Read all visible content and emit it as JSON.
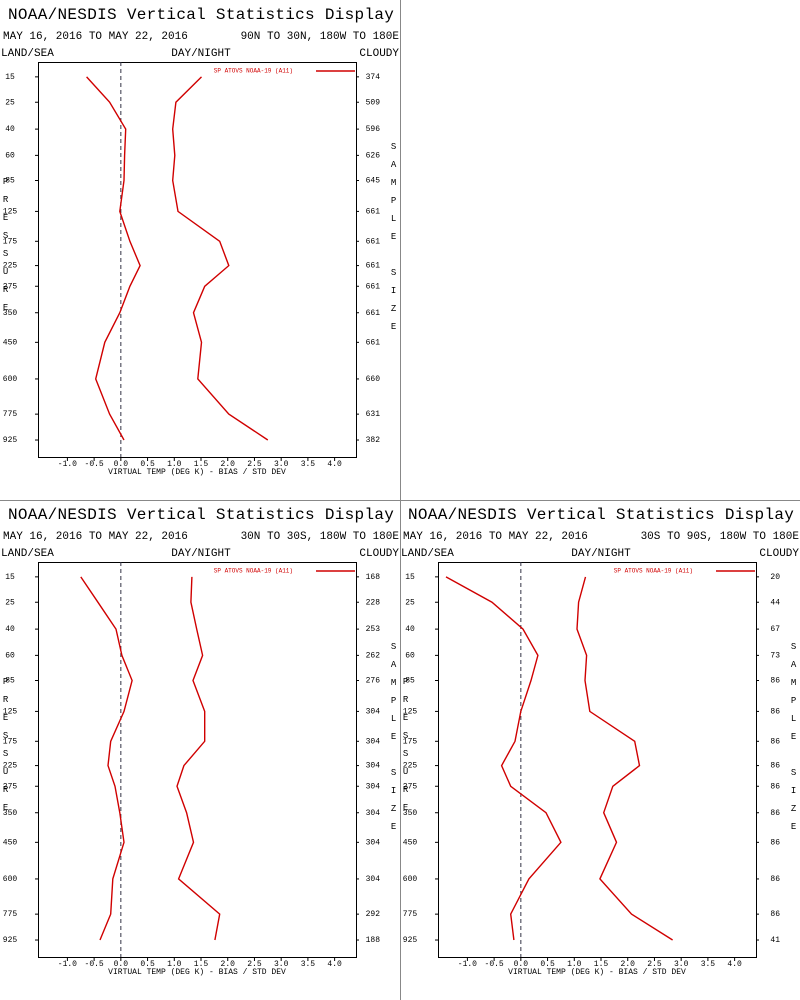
{
  "chart_data": [
    {
      "type": "line",
      "title": "NOAA/NESDIS Vertical Statistics Display",
      "date_range": "MAY 16, 2016 TO MAY 22, 2016",
      "region": "90N TO 30N, 180W TO 180E",
      "land_sea": "LAND/SEA",
      "day_night": "DAY/NIGHT",
      "cloudy": "CLOUDY",
      "x_label": "VIRTUAL TEMP (DEG K) - BIAS / STD DEV",
      "y_label": "PRESSURE",
      "y2_label": "SAMPLE SIZE",
      "categories": [
        15,
        25,
        40,
        60,
        85,
        125,
        175,
        225,
        275,
        350,
        450,
        600,
        775,
        925
      ],
      "sample_sizes": [
        374,
        509,
        596,
        626,
        645,
        661,
        661,
        661,
        661,
        661,
        661,
        660,
        631,
        382
      ],
      "series": [
        {
          "name": "SP ATOVS NOAA-19 (A11)",
          "color": "#d00000",
          "values": [
            -0.64,
            -0.21,
            0.09,
            0.07,
            0.06,
            -0.02,
            0.17,
            0.36,
            0.17,
            -0.02,
            -0.3,
            -0.47,
            -0.21,
            0.06
          ]
        },
        {
          "color": "#d00000",
          "values": [
            1.51,
            1.03,
            0.97,
            1.01,
            0.97,
            1.07,
            1.85,
            2.02,
            1.57,
            1.36,
            1.51,
            1.44,
            2.02,
            2.75
          ]
        }
      ],
      "xlim": [
        -1.55,
        4.4
      ],
      "xticks": [
        {
          "value": -1,
          "label": "-1.0"
        },
        {
          "value": -0.5,
          "label": "-0.5"
        },
        {
          "value": 0,
          "label": "0.0"
        },
        {
          "value": 0.5,
          "label": "0.5"
        },
        {
          "value": 1,
          "label": "1.0"
        },
        {
          "value": 1.5,
          "label": "1.5"
        },
        {
          "value": 2,
          "label": "2.0"
        },
        {
          "value": 2.5,
          "label": "2.5"
        },
        {
          "value": 3,
          "label": "3.0"
        },
        {
          "value": 3.5,
          "label": "3.5"
        },
        {
          "value": 4,
          "label": "4.0"
        }
      ],
      "ylim": [
        1034,
        10.7
      ],
      "yscale": "power",
      "yscale_exponent": 0.286,
      "zero_line": true
    },
    {
      "type": "line",
      "title": "NOAA/NESDIS Vertical Statistics Display",
      "date_range": "MAY 16, 2016 TO MAY 22, 2016",
      "region": "30N TO 30S, 180W TO 180E",
      "land_sea": "LAND/SEA",
      "day_night": "DAY/NIGHT",
      "cloudy": "CLOUDY",
      "x_label": "VIRTUAL TEMP (DEG K) - BIAS / STD DEV",
      "y_label": "PRESSURE",
      "y2_label": "SAMPLE SIZE",
      "categories": [
        15,
        25,
        40,
        60,
        85,
        125,
        175,
        225,
        275,
        350,
        450,
        600,
        775,
        925
      ],
      "sample_sizes": [
        168,
        228,
        253,
        262,
        276,
        304,
        304,
        304,
        304,
        304,
        304,
        304,
        292,
        188
      ],
      "series": [
        {
          "name": "SP ATOVS NOAA-19 (A11)",
          "color": "#d00000",
          "values": [
            -0.75,
            -0.43,
            -0.09,
            0.02,
            0.21,
            0.06,
            -0.19,
            -0.24,
            -0.11,
            -0.02,
            0.06,
            -0.15,
            -0.19,
            -0.39
          ]
        },
        {
          "color": "#d00000",
          "values": [
            1.33,
            1.31,
            1.42,
            1.53,
            1.35,
            1.57,
            1.57,
            1.18,
            1.05,
            1.23,
            1.36,
            1.08,
            1.85,
            1.76
          ]
        }
      ],
      "xlim": [
        -1.55,
        4.4
      ],
      "xticks": [
        {
          "value": -1,
          "label": "-1.0"
        },
        {
          "value": -0.5,
          "label": "-0.5"
        },
        {
          "value": 0,
          "label": "0.0"
        },
        {
          "value": 0.5,
          "label": "0.5"
        },
        {
          "value": 1,
          "label": "1.0"
        },
        {
          "value": 1.5,
          "label": "1.5"
        },
        {
          "value": 2,
          "label": "2.0"
        },
        {
          "value": 2.5,
          "label": "2.5"
        },
        {
          "value": 3,
          "label": "3.0"
        },
        {
          "value": 3.5,
          "label": "3.5"
        },
        {
          "value": 4,
          "label": "4.0"
        }
      ],
      "ylim": [
        1034,
        10.7
      ],
      "yscale": "power",
      "yscale_exponent": 0.286,
      "zero_line": true
    },
    {
      "type": "line",
      "title": "NOAA/NESDIS Vertical Statistics Display",
      "date_range": "MAY 16, 2016 TO MAY 22, 2016",
      "region": "30S TO 90S, 180W TO 180E",
      "land_sea": "LAND/SEA",
      "day_night": "DAY/NIGHT",
      "cloudy": "CLOUDY",
      "x_label": "VIRTUAL TEMP (DEG K) - BIAS / STD DEV",
      "y_label": "PRESSURE",
      "y2_label": "SAMPLE SIZE",
      "categories": [
        15,
        25,
        40,
        60,
        85,
        125,
        175,
        225,
        275,
        350,
        450,
        600,
        775,
        925
      ],
      "sample_sizes": [
        20,
        44,
        67,
        73,
        86,
        86,
        86,
        86,
        86,
        86,
        86,
        86,
        86,
        41
      ],
      "series": [
        {
          "name": "SP ATOVS NOAA-19 (A11)",
          "color": "#d00000",
          "values": [
            -1.4,
            -0.54,
            0.04,
            0.32,
            0.19,
            0,
            -0.11,
            -0.36,
            -0.19,
            0.47,
            0.75,
            0.15,
            -0.19,
            -0.13
          ]
        },
        {
          "color": "#d00000",
          "values": [
            1.21,
            1.08,
            1.05,
            1.23,
            1.2,
            1.29,
            2.13,
            2.22,
            1.72,
            1.55,
            1.79,
            1.48,
            2.07,
            2.84
          ]
        }
      ],
      "xlim": [
        -1.55,
        4.4
      ],
      "xticks": [
        {
          "value": -1,
          "label": "-1.0"
        },
        {
          "value": -0.5,
          "label": "-0.5"
        },
        {
          "value": 0,
          "label": "0.0"
        },
        {
          "value": 0.5,
          "label": "0.5"
        },
        {
          "value": 1,
          "label": "1.0"
        },
        {
          "value": 1.5,
          "label": "1.5"
        },
        {
          "value": 2,
          "label": "2.0"
        },
        {
          "value": 2.5,
          "label": "2.5"
        },
        {
          "value": 3,
          "label": "3.0"
        },
        {
          "value": 3.5,
          "label": "3.5"
        },
        {
          "value": 4,
          "label": "4.0"
        }
      ],
      "ylim": [
        1034,
        10.7
      ],
      "yscale": "power",
      "yscale_exponent": 0.286,
      "zero_line": true
    }
  ]
}
